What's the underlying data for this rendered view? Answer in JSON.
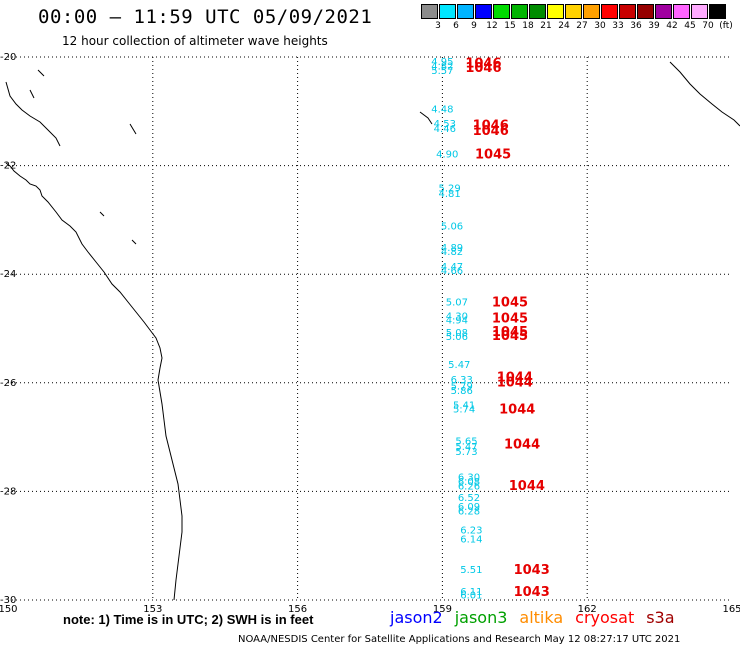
{
  "header": {
    "title": "00:00 – 11:59 UTC 05/09/2021",
    "subtitle": "12 hour collection of altimeter wave heights"
  },
  "legend": {
    "colors": [
      "#8c8c8c",
      "#00e6ff",
      "#00b4ff",
      "#0000ff",
      "#00dc00",
      "#00b400",
      "#008c00",
      "#ffff00",
      "#ffd200",
      "#ffa000",
      "#ff0000",
      "#c80000",
      "#960000",
      "#a000a0",
      "#ff64ff",
      "#ffaaff",
      "#000000"
    ],
    "labels": [
      "3",
      "6",
      "9",
      "12",
      "15",
      "18",
      "21",
      "24",
      "27",
      "30",
      "33",
      "36",
      "39",
      "42",
      "45",
      "70",
      "(ft)"
    ]
  },
  "map": {
    "lon_ticks": [
      "150",
      "153",
      "156",
      "159",
      "162",
      "165"
    ],
    "lat_ticks": [
      "-20",
      "-22",
      "-24",
      "-26",
      "-28",
      "-30"
    ],
    "lon_range": [
      150,
      165
    ],
    "lat_range": [
      -20,
      -30
    ]
  },
  "swh_values": [
    {
      "lon": 159.0,
      "lat": -20.07,
      "text": "4.95"
    },
    {
      "lon": 159.0,
      "lat": -20.16,
      "text": "4.82"
    },
    {
      "lon": 159.0,
      "lat": -20.24,
      "text": "5.57"
    },
    {
      "lon": 159.0,
      "lat": -20.95,
      "text": "4.48"
    },
    {
      "lon": 159.05,
      "lat": -21.22,
      "text": "4.53"
    },
    {
      "lon": 159.05,
      "lat": -21.31,
      "text": "4.46"
    },
    {
      "lon": 159.1,
      "lat": -21.78,
      "text": "4.90"
    },
    {
      "lon": 159.15,
      "lat": -22.4,
      "text": "5.29"
    },
    {
      "lon": 159.15,
      "lat": -22.5,
      "text": "4.81"
    },
    {
      "lon": 159.2,
      "lat": -23.1,
      "text": "5.06"
    },
    {
      "lon": 159.2,
      "lat": -23.5,
      "text": "4.89"
    },
    {
      "lon": 159.2,
      "lat": -23.57,
      "text": "4.82"
    },
    {
      "lon": 159.2,
      "lat": -23.85,
      "text": "4.47"
    },
    {
      "lon": 159.2,
      "lat": -23.92,
      "text": "4.66"
    },
    {
      "lon": 159.3,
      "lat": -24.5,
      "text": "5.07"
    },
    {
      "lon": 159.3,
      "lat": -24.76,
      "text": "4.30"
    },
    {
      "lon": 159.3,
      "lat": -24.83,
      "text": "4.94"
    },
    {
      "lon": 159.3,
      "lat": -25.06,
      "text": "5.08"
    },
    {
      "lon": 159.3,
      "lat": -25.14,
      "text": "5.06"
    },
    {
      "lon": 159.35,
      "lat": -25.65,
      "text": "5.47"
    },
    {
      "lon": 159.4,
      "lat": -25.93,
      "text": "6.33"
    },
    {
      "lon": 159.4,
      "lat": -26.05,
      "text": "5.79"
    },
    {
      "lon": 159.4,
      "lat": -26.13,
      "text": "5.86"
    },
    {
      "lon": 159.45,
      "lat": -26.4,
      "text": "5.41"
    },
    {
      "lon": 159.45,
      "lat": -26.47,
      "text": "5.74"
    },
    {
      "lon": 159.5,
      "lat": -27.06,
      "text": "5.65"
    },
    {
      "lon": 159.5,
      "lat": -27.16,
      "text": "5.47"
    },
    {
      "lon": 159.5,
      "lat": -27.26,
      "text": "5.73"
    },
    {
      "lon": 159.55,
      "lat": -27.73,
      "text": "6.30"
    },
    {
      "lon": 159.55,
      "lat": -27.81,
      "text": "6.08"
    },
    {
      "lon": 159.55,
      "lat": -27.89,
      "text": "6.26"
    },
    {
      "lon": 159.55,
      "lat": -28.1,
      "text": "6.52"
    },
    {
      "lon": 159.55,
      "lat": -28.27,
      "text": "6.09"
    },
    {
      "lon": 159.55,
      "lat": -28.35,
      "text": "6.28"
    },
    {
      "lon": 159.6,
      "lat": -28.7,
      "text": "6.23"
    },
    {
      "lon": 159.6,
      "lat": -28.87,
      "text": "6.14"
    },
    {
      "lon": 159.6,
      "lat": -29.43,
      "text": "5.51"
    },
    {
      "lon": 159.6,
      "lat": -29.83,
      "text": "6.11"
    },
    {
      "lon": 159.6,
      "lat": -29.9,
      "text": "6.01"
    }
  ],
  "pressure_values": [
    {
      "lon": 159.85,
      "lat": -20.1,
      "text": "1046"
    },
    {
      "lon": 159.85,
      "lat": -20.18,
      "text": "1046"
    },
    {
      "lon": 160.0,
      "lat": -21.24,
      "text": "1046"
    },
    {
      "lon": 160.0,
      "lat": -21.34,
      "text": "1046"
    },
    {
      "lon": 160.05,
      "lat": -21.78,
      "text": "1045"
    },
    {
      "lon": 160.4,
      "lat": -24.5,
      "text": "1045"
    },
    {
      "lon": 160.4,
      "lat": -24.8,
      "text": "1045"
    },
    {
      "lon": 160.4,
      "lat": -25.05,
      "text": "1045"
    },
    {
      "lon": 160.4,
      "lat": -25.12,
      "text": "1045"
    },
    {
      "lon": 160.5,
      "lat": -25.88,
      "text": "1044"
    },
    {
      "lon": 160.5,
      "lat": -25.98,
      "text": "1044"
    },
    {
      "lon": 160.55,
      "lat": -26.47,
      "text": "1044"
    },
    {
      "lon": 160.65,
      "lat": -27.12,
      "text": "1044"
    },
    {
      "lon": 160.75,
      "lat": -27.88,
      "text": "1044"
    },
    {
      "lon": 160.85,
      "lat": -29.43,
      "text": "1043"
    },
    {
      "lon": 160.85,
      "lat": -29.83,
      "text": "1043"
    }
  ],
  "footer": {
    "note": "note: 1) Time is in UTC; 2) SWH is in feet",
    "satellites": [
      {
        "name": "jason2",
        "color": "#0000ff"
      },
      {
        "name": "jason3",
        "color": "#00a000"
      },
      {
        "name": "altika",
        "color": "#ff8c00"
      },
      {
        "name": "cryosat",
        "color": "#ff0000"
      },
      {
        "name": "s3a",
        "color": "#a00000"
      }
    ],
    "credit": "NOAA/NESDIS Center for Satellite Applications and Research    May 12 08:27:17 UTC 2021"
  }
}
